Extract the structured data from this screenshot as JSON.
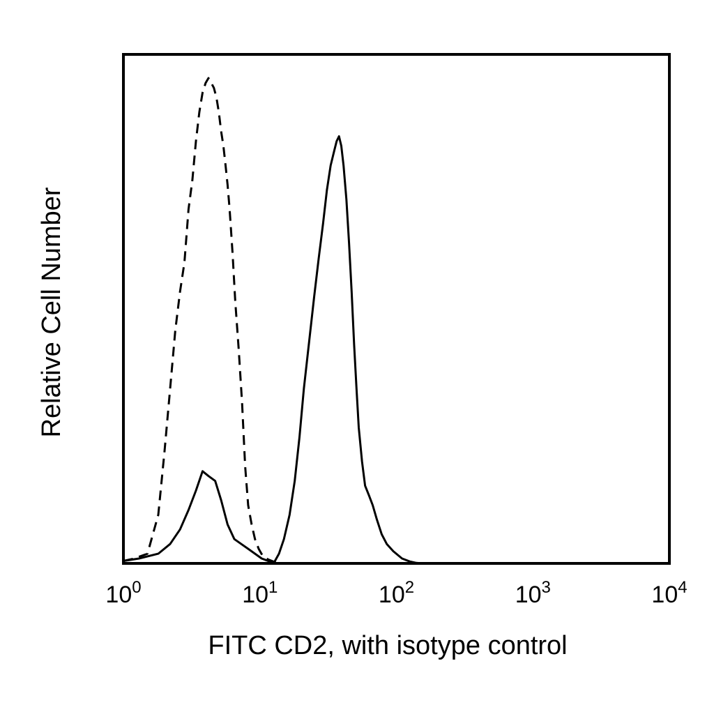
{
  "chart_data": {
    "type": "line",
    "title": "",
    "xlabel": "FITC CD2, with isotype control",
    "ylabel": "Relative Cell Number",
    "x_scale": "log",
    "xlim": [
      1,
      10000
    ],
    "ylim": [
      0,
      1
    ],
    "grid": false,
    "legend": "none",
    "x_ticks": [
      {
        "value": 1,
        "base": "10",
        "exp": "0"
      },
      {
        "value": 10,
        "base": "10",
        "exp": "1"
      },
      {
        "value": 100,
        "base": "10",
        "exp": "2"
      },
      {
        "value": 1000,
        "base": "10",
        "exp": "3"
      },
      {
        "value": 10000,
        "base": "10",
        "exp": "4"
      }
    ],
    "series": [
      {
        "style": "solid",
        "x": [
          1.0,
          1.3,
          1.8,
          2.2,
          2.6,
          3.0,
          3.4,
          3.8,
          4.2,
          4.7,
          5.2,
          5.8,
          6.5,
          7.3,
          8.2,
          9.2,
          10.3,
          11.5,
          12.6,
          13.8,
          15.0,
          16.5,
          18.0,
          19.5,
          21.0,
          23.0,
          25.0,
          27.0,
          29.0,
          31.0,
          33.0,
          35.0,
          36.5,
          38.0,
          39.5,
          41.0,
          43.0,
          45.0,
          47.0,
          49.0,
          51.0,
          53.0,
          56.0,
          59.0,
          63.0,
          67.0,
          72.0,
          78.0,
          85.0,
          95.0,
          110.0,
          125.0,
          140.0,
          155.0
        ],
        "y": [
          0.005,
          0.01,
          0.02,
          0.04,
          0.07,
          0.11,
          0.15,
          0.19,
          0.18,
          0.17,
          0.13,
          0.08,
          0.05,
          0.04,
          0.03,
          0.02,
          0.01,
          0.005,
          0.0,
          0.02,
          0.05,
          0.1,
          0.17,
          0.26,
          0.36,
          0.46,
          0.55,
          0.63,
          0.7,
          0.77,
          0.82,
          0.85,
          0.87,
          0.88,
          0.86,
          0.82,
          0.75,
          0.66,
          0.56,
          0.45,
          0.36,
          0.28,
          0.21,
          0.16,
          0.14,
          0.12,
          0.09,
          0.06,
          0.04,
          0.025,
          0.01,
          0.004,
          0.001,
          0.0
        ]
      },
      {
        "style": "dashed",
        "x": [
          1.0,
          1.2,
          1.5,
          1.8,
          2.0,
          2.2,
          2.4,
          2.6,
          2.8,
          3.0,
          3.2,
          3.4,
          3.6,
          3.8,
          4.0,
          4.2,
          4.4,
          4.6,
          4.8,
          5.0,
          5.2,
          5.4,
          5.6,
          5.8,
          6.0,
          6.3,
          6.6,
          7.0,
          7.4,
          7.8,
          8.2,
          8.7,
          9.2,
          9.8,
          10.5,
          11.5,
          12.5,
          13.5,
          14.5
        ],
        "y": [
          0.005,
          0.01,
          0.02,
          0.1,
          0.23,
          0.36,
          0.48,
          0.56,
          0.62,
          0.73,
          0.79,
          0.87,
          0.93,
          0.97,
          0.99,
          1.0,
          0.99,
          0.98,
          0.96,
          0.93,
          0.89,
          0.86,
          0.82,
          0.78,
          0.73,
          0.64,
          0.54,
          0.44,
          0.33,
          0.2,
          0.12,
          0.08,
          0.05,
          0.03,
          0.015,
          0.008,
          0.004,
          0.002,
          0.0
        ]
      }
    ]
  }
}
